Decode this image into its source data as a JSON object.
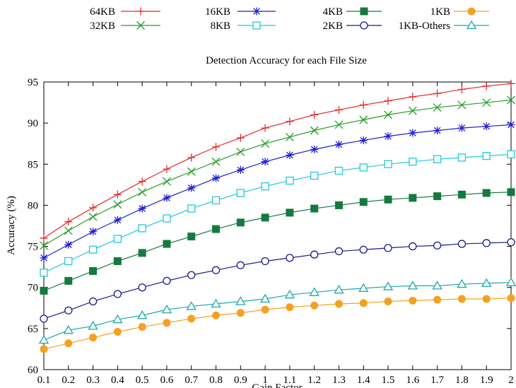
{
  "chart_data": {
    "type": "line",
    "title": "Detection Accuracy for each File Size",
    "xlabel": "Gain Factor",
    "ylabel": "Accuracy (%)",
    "xlim": [
      0.1,
      2.0
    ],
    "ylim": [
      60,
      95
    ],
    "x": [
      0.1,
      0.2,
      0.3,
      0.4,
      0.5,
      0.6,
      0.7,
      0.8,
      0.9,
      1.0,
      1.1,
      1.2,
      1.3,
      1.4,
      1.5,
      1.6,
      1.7,
      1.8,
      1.9,
      2.0
    ],
    "x_tick_labels": [
      "0.1",
      "0.2",
      "0.3",
      "0.4",
      "0.5",
      "0.6",
      "0.7",
      "0.8",
      "0.9",
      "1",
      "1.1",
      "1.2",
      "1.3",
      "1.4",
      "1.5",
      "1.6",
      "1.7",
      "1.8",
      "1.9",
      "2"
    ],
    "y_ticks": [
      60,
      65,
      70,
      75,
      80,
      85,
      90,
      95
    ],
    "y_tick_labels": [
      "60",
      "65",
      "70",
      "75",
      "80",
      "85",
      "90",
      "95"
    ],
    "grid": false,
    "legend_position": "top, above the title",
    "series": [
      {
        "name": "64KB",
        "color": "#e8282b",
        "marker": "plus",
        "values": [
          76.0,
          78.0,
          79.7,
          81.3,
          82.9,
          84.4,
          85.8,
          87.1,
          88.2,
          89.4,
          90.2,
          91.0,
          91.6,
          92.2,
          92.7,
          93.2,
          93.6,
          94.1,
          94.5,
          94.8
        ]
      },
      {
        "name": "32KB",
        "color": "#2a9a2a",
        "marker": "cross",
        "values": [
          75.1,
          76.9,
          78.6,
          80.1,
          81.6,
          82.9,
          84.1,
          85.3,
          86.5,
          87.5,
          88.3,
          89.1,
          89.8,
          90.4,
          91.0,
          91.5,
          91.9,
          92.2,
          92.5,
          92.8
        ]
      },
      {
        "name": "16KB",
        "color": "#1f1fd6",
        "marker": "star",
        "values": [
          73.6,
          75.2,
          76.8,
          78.2,
          79.6,
          80.9,
          82.1,
          83.3,
          84.3,
          85.3,
          86.1,
          86.8,
          87.4,
          87.9,
          88.4,
          88.8,
          89.1,
          89.4,
          89.6,
          89.8
        ]
      },
      {
        "name": "8KB",
        "color": "#22c8dc",
        "marker": "square-open",
        "values": [
          71.8,
          73.2,
          74.6,
          75.9,
          77.2,
          78.4,
          79.6,
          80.6,
          81.5,
          82.3,
          83.0,
          83.6,
          84.2,
          84.6,
          85.0,
          85.3,
          85.6,
          85.8,
          86.0,
          86.2
        ]
      },
      {
        "name": "4KB",
        "color": "#157a3f",
        "marker": "square-filled",
        "values": [
          69.6,
          70.8,
          72.0,
          73.2,
          74.2,
          75.3,
          76.2,
          77.1,
          77.9,
          78.5,
          79.1,
          79.6,
          80.0,
          80.4,
          80.7,
          80.9,
          81.1,
          81.3,
          81.5,
          81.6
        ]
      },
      {
        "name": "2KB",
        "color": "#1a1a8a",
        "marker": "circle-open",
        "values": [
          66.2,
          67.2,
          68.3,
          69.2,
          70.0,
          70.8,
          71.5,
          72.1,
          72.7,
          73.2,
          73.6,
          74.0,
          74.4,
          74.6,
          74.8,
          75.0,
          75.1,
          75.3,
          75.4,
          75.5
        ]
      },
      {
        "name": "1KB",
        "color": "#f5a020",
        "marker": "circle-filled",
        "values": [
          62.5,
          63.2,
          63.9,
          64.6,
          65.2,
          65.7,
          66.2,
          66.6,
          66.9,
          67.3,
          67.6,
          67.8,
          68.0,
          68.1,
          68.3,
          68.4,
          68.5,
          68.6,
          68.6,
          68.7
        ]
      },
      {
        "name": "1KB-Others",
        "color": "#1ea8a8",
        "marker": "triangle-open",
        "values": [
          63.6,
          64.8,
          65.3,
          66.1,
          66.6,
          67.3,
          67.7,
          68.0,
          68.3,
          68.6,
          69.1,
          69.4,
          69.7,
          69.9,
          70.1,
          70.2,
          70.2,
          70.4,
          70.5,
          70.6
        ]
      }
    ]
  }
}
